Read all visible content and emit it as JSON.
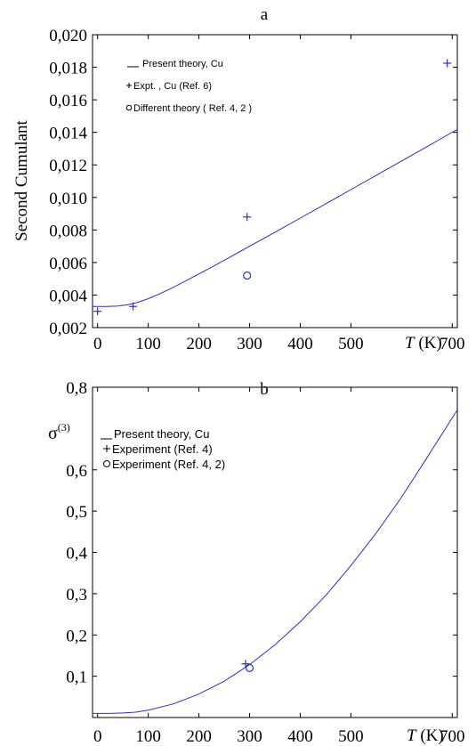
{
  "chart_data": [
    {
      "type": "line",
      "title": "a",
      "ylabel": "Second Cumulant",
      "xlabel_italic": "T",
      "xlabel_unit": " (K)",
      "xlim": [
        -10,
        710
      ],
      "ylim": [
        0.002,
        0.02
      ],
      "x_ticks": [
        0,
        100,
        200,
        300,
        400,
        500,
        700
      ],
      "x_tick_labels": [
        "0",
        "100",
        "200",
        "300",
        "400",
        "500",
        "700"
      ],
      "y_ticks": [
        0.002,
        0.004,
        0.006,
        0.008,
        0.01,
        0.012,
        0.014,
        0.016,
        0.018,
        0.02
      ],
      "y_tick_labels": [
        "0,002",
        "0,004",
        "0,006",
        "0,008",
        "0,010",
        "0,012",
        "0,014",
        "0,016",
        "0,018",
        "0,020"
      ],
      "grid": false,
      "legend_position": "top-left",
      "legend": [
        {
          "symbol": "__",
          "label": "Present theory, Cu"
        },
        {
          "symbol": "+",
          "label": "Expt. , Cu (Ref. 6)"
        },
        {
          "symbol": "o",
          "label": "Different theory ( Ref. 4, 2 )"
        }
      ],
      "series": [
        {
          "kind": "line",
          "x": [
            -10,
            0,
            20,
            40,
            60,
            80,
            100,
            120,
            140,
            160,
            180,
            200,
            220,
            240,
            260,
            280,
            300,
            350,
            400,
            450,
            500,
            550,
            600,
            650,
            700,
            710
          ],
          "y": [
            0.0033,
            0.0033,
            0.0033,
            0.00333,
            0.00341,
            0.00356,
            0.00378,
            0.00404,
            0.00433,
            0.00464,
            0.00497,
            0.0053,
            0.00563,
            0.00597,
            0.00631,
            0.00665,
            0.007,
            0.00786,
            0.00873,
            0.0096,
            0.01048,
            0.01136,
            0.01224,
            0.01312,
            0.01401,
            0.01418
          ]
        },
        {
          "kind": "plus",
          "x": [
            0,
            70,
            295,
            690
          ],
          "y": [
            0.003,
            0.0033,
            0.0088,
            0.01825
          ]
        },
        {
          "kind": "circle",
          "x": [
            295
          ],
          "y": [
            0.0052
          ]
        }
      ]
    },
    {
      "type": "line",
      "title": "b",
      "ylabel": "σ",
      "ylabel_sup": "(3)",
      "xlabel_italic": "T",
      "xlabel_unit": " (K)",
      "xlim": [
        -10,
        710
      ],
      "ylim": [
        0.0,
        0.8
      ],
      "x_ticks": [
        0,
        100,
        200,
        300,
        400,
        500,
        700
      ],
      "x_tick_labels": [
        "0",
        "100",
        "200",
        "300",
        "400",
        "500",
        "700"
      ],
      "y_ticks": [
        0.1,
        0.2,
        0.3,
        0.4,
        0.5,
        0.6,
        0.8
      ],
      "y_tick_labels": [
        "0,1",
        "0,2",
        "0,3",
        "0,4",
        "0,5",
        "0,6",
        "0,8"
      ],
      "grid": false,
      "legend_position": "top-left",
      "legend": [
        {
          "symbol": "__",
          "label": "Present theory, Cu"
        },
        {
          "symbol": "+",
          "label": "Experiment (Ref. 4)"
        },
        {
          "symbol": "o",
          "label": "Experiment (Ref. 4, 2)"
        }
      ],
      "series": [
        {
          "kind": "line",
          "x": [
            -10,
            0,
            25,
            50,
            75,
            100,
            150,
            200,
            250,
            300,
            350,
            400,
            450,
            500,
            550,
            600,
            650,
            710
          ],
          "y": [
            0.01,
            0.01,
            0.01,
            0.011,
            0.013,
            0.018,
            0.033,
            0.057,
            0.088,
            0.128,
            0.176,
            0.232,
            0.295,
            0.368,
            0.447,
            0.534,
            0.629,
            0.745
          ]
        },
        {
          "kind": "plus",
          "x": [
            292
          ],
          "y": [
            0.13
          ]
        },
        {
          "kind": "circle",
          "x": [
            300
          ],
          "y": [
            0.12
          ]
        }
      ]
    }
  ]
}
